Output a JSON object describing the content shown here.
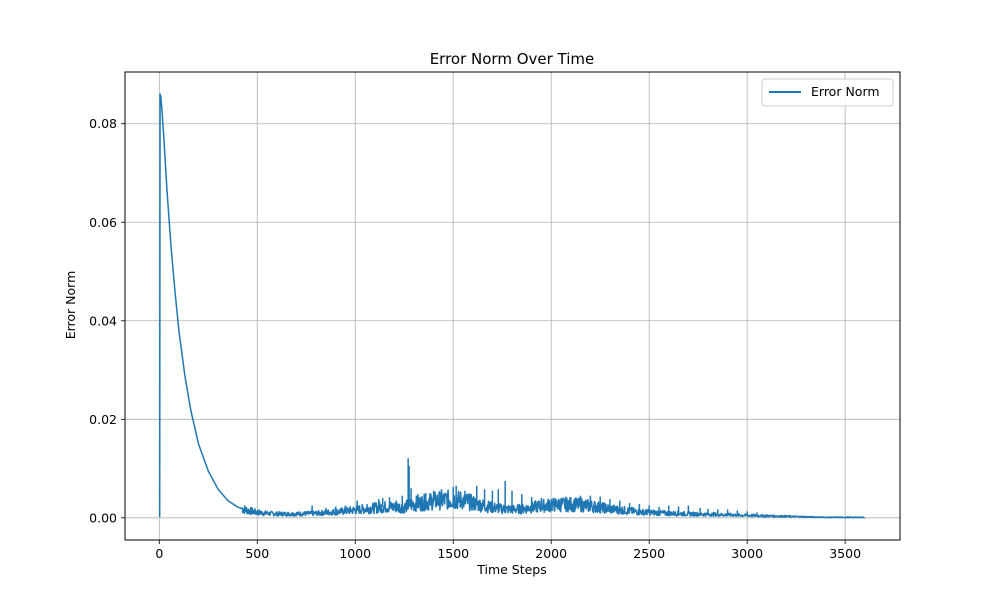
{
  "chart_data": {
    "type": "line",
    "title": "Error Norm Over Time",
    "xlabel": "Time Steps",
    "ylabel": "Error Norm",
    "xlim": [
      -175,
      3780
    ],
    "ylim": [
      -0.0045,
      0.0905
    ],
    "xticks": [
      0,
      500,
      1000,
      1500,
      2000,
      2500,
      3000,
      3500
    ],
    "yticks": [
      0.0,
      0.02,
      0.04,
      0.06,
      0.08
    ],
    "ytick_labels": [
      "0.00",
      "0.02",
      "0.04",
      "0.06",
      "0.08"
    ],
    "grid": true,
    "legend_position": "top-right",
    "color": "#1f77b4",
    "series": [
      {
        "name": "Error Norm",
        "x": [
          0,
          2,
          4,
          8,
          15,
          25,
          40,
          60,
          80,
          100,
          130,
          160,
          200,
          250,
          300,
          350,
          400,
          450,
          500,
          550,
          600,
          700,
          800,
          900,
          1000,
          1100,
          1150,
          1200,
          1250,
          1270,
          1280,
          1300,
          1350,
          1400,
          1450,
          1500,
          1550,
          1600,
          1650,
          1700,
          1750,
          1800,
          1850,
          1900,
          1950,
          2000,
          2050,
          2100,
          2150,
          2200,
          2250,
          2300,
          2350,
          2400,
          2450,
          2500,
          2600,
          2700,
          2800,
          2900,
          3000,
          3100,
          3200,
          3300,
          3400,
          3500,
          3600
        ],
        "y": [
          0.0003,
          0.0003,
          0.086,
          0.0855,
          0.082,
          0.076,
          0.066,
          0.055,
          0.046,
          0.038,
          0.029,
          0.022,
          0.015,
          0.0095,
          0.0058,
          0.0035,
          0.0022,
          0.0015,
          0.0011,
          0.0009,
          0.0008,
          0.0008,
          0.0009,
          0.0012,
          0.0016,
          0.002,
          0.0022,
          0.0022,
          0.0021,
          0.0025,
          0.0027,
          0.0028,
          0.0031,
          0.0034,
          0.0036,
          0.0037,
          0.0035,
          0.003,
          0.0025,
          0.0021,
          0.0018,
          0.0017,
          0.0018,
          0.0021,
          0.0024,
          0.0026,
          0.0027,
          0.0027,
          0.0026,
          0.0024,
          0.0021,
          0.0018,
          0.0016,
          0.0014,
          0.0012,
          0.0011,
          0.0009,
          0.0008,
          0.0007,
          0.0006,
          0.0005,
          0.0004,
          0.0003,
          0.0002,
          0.0001,
          0.0001,
          0.0001
        ],
        "spikes": [
          {
            "x": 780,
            "y": 0.0025
          },
          {
            "x": 850,
            "y": 0.002
          },
          {
            "x": 900,
            "y": 0.0023
          },
          {
            "x": 950,
            "y": 0.0025
          },
          {
            "x": 1010,
            "y": 0.0035
          },
          {
            "x": 1060,
            "y": 0.0028
          },
          {
            "x": 1120,
            "y": 0.0038
          },
          {
            "x": 1140,
            "y": 0.004
          },
          {
            "x": 1175,
            "y": 0.0042
          },
          {
            "x": 1210,
            "y": 0.0035
          },
          {
            "x": 1240,
            "y": 0.0045
          },
          {
            "x": 1270,
            "y": 0.0121
          },
          {
            "x": 1275,
            "y": 0.0105
          },
          {
            "x": 1285,
            "y": 0.006
          },
          {
            "x": 1320,
            "y": 0.0048
          },
          {
            "x": 1360,
            "y": 0.005
          },
          {
            "x": 1400,
            "y": 0.0055
          },
          {
            "x": 1440,
            "y": 0.0058
          },
          {
            "x": 1500,
            "y": 0.0063
          },
          {
            "x": 1515,
            "y": 0.0065
          },
          {
            "x": 1560,
            "y": 0.0055
          },
          {
            "x": 1620,
            "y": 0.0065
          },
          {
            "x": 1660,
            "y": 0.0058
          },
          {
            "x": 1700,
            "y": 0.0055
          },
          {
            "x": 1730,
            "y": 0.0058
          },
          {
            "x": 1765,
            "y": 0.0075
          },
          {
            "x": 1800,
            "y": 0.0055
          },
          {
            "x": 1850,
            "y": 0.0048
          },
          {
            "x": 1900,
            "y": 0.0042
          },
          {
            "x": 1950,
            "y": 0.004
          },
          {
            "x": 2000,
            "y": 0.0038
          },
          {
            "x": 2050,
            "y": 0.004
          },
          {
            "x": 2100,
            "y": 0.0042
          },
          {
            "x": 2150,
            "y": 0.0045
          },
          {
            "x": 2200,
            "y": 0.0045
          },
          {
            "x": 2250,
            "y": 0.0043
          },
          {
            "x": 2300,
            "y": 0.0038
          },
          {
            "x": 2350,
            "y": 0.0035
          },
          {
            "x": 2400,
            "y": 0.003
          },
          {
            "x": 2450,
            "y": 0.0028
          },
          {
            "x": 2500,
            "y": 0.0025
          },
          {
            "x": 2550,
            "y": 0.0022
          },
          {
            "x": 2600,
            "y": 0.0025
          },
          {
            "x": 2650,
            "y": 0.0023
          },
          {
            "x": 2700,
            "y": 0.0025
          },
          {
            "x": 2760,
            "y": 0.002
          },
          {
            "x": 2800,
            "y": 0.0018
          },
          {
            "x": 2850,
            "y": 0.0017
          },
          {
            "x": 2900,
            "y": 0.0017
          },
          {
            "x": 2950,
            "y": 0.0015
          },
          {
            "x": 3000,
            "y": 0.0013
          },
          {
            "x": 3050,
            "y": 0.0011
          }
        ]
      }
    ]
  }
}
